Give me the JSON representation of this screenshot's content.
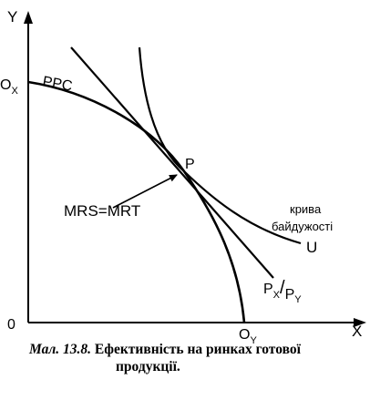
{
  "axes": {
    "y_label": "Y",
    "x_label": "X",
    "origin_label": "0",
    "ox_main": "O",
    "ox_sub": "X",
    "oy_main": "O",
    "oy_sub": "Y"
  },
  "curves": {
    "ppc_label": "PPC",
    "indifference_label": "U",
    "indifference_note_line1": "крива",
    "indifference_note_line2": "байдужості",
    "price_line_px": "P",
    "price_line_px_sub": "X",
    "price_line_slash": "/",
    "price_line_py": "P",
    "price_line_py_sub": "Y"
  },
  "point": {
    "label": "P",
    "annotation": "MRS=MRT"
  },
  "caption": {
    "figure_number": "Мал. 13.8.",
    "title_line1": "Ефективність на ринках готової",
    "title_line2": "продукції."
  }
}
